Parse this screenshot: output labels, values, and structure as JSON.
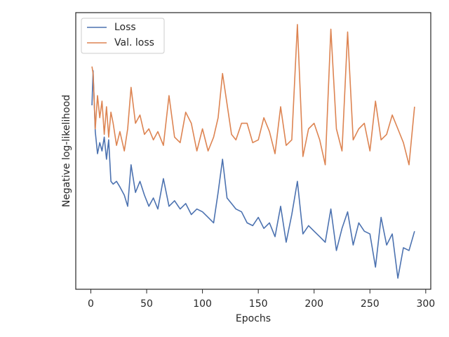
{
  "chart_data": {
    "type": "line",
    "xlabel": "Epochs",
    "ylabel": "Negative log-likelihood",
    "x": [
      1,
      2,
      4,
      6,
      8,
      10,
      12,
      14,
      16,
      18,
      20,
      23,
      26,
      30,
      33,
      36,
      40,
      44,
      48,
      52,
      56,
      60,
      65,
      70,
      75,
      80,
      85,
      90,
      95,
      100,
      105,
      110,
      114,
      118,
      122,
      126,
      130,
      135,
      140,
      145,
      150,
      155,
      160,
      165,
      170,
      175,
      180,
      185,
      190,
      195,
      200,
      205,
      210,
      215,
      220,
      225,
      230,
      235,
      240,
      245,
      250,
      255,
      260,
      265,
      270,
      275,
      280,
      285,
      290
    ],
    "series": [
      {
        "name": "Loss",
        "color": "#4c72b0",
        "values": [
          66.5,
          79,
          57,
          49,
          53,
          50,
          55,
          47,
          54,
          39,
          38,
          39,
          37,
          34,
          30,
          45,
          35,
          39,
          34,
          30,
          33,
          29,
          40,
          30,
          32,
          29,
          31,
          27,
          29,
          28,
          26,
          24,
          35,
          47,
          33,
          31,
          29,
          28,
          24,
          23,
          26,
          22,
          24,
          19,
          30,
          17,
          27,
          39,
          20,
          23,
          21,
          19,
          17,
          29,
          14,
          22,
          28,
          16,
          24,
          21,
          20,
          8,
          26,
          16,
          20,
          4,
          15,
          14,
          21
        ]
      },
      {
        "name": "Val. loss",
        "color": "#dd8452",
        "values": [
          80.5,
          78,
          58,
          70,
          62,
          68,
          56,
          66,
          55,
          64,
          60,
          52,
          57,
          50,
          58,
          73,
          60,
          63,
          56,
          58,
          54,
          57,
          52,
          70,
          55,
          53,
          64,
          60,
          50,
          58,
          50,
          55,
          62,
          78,
          67,
          56,
          54,
          60,
          60,
          53,
          54,
          62,
          57,
          49,
          66,
          52,
          54,
          95.7,
          48,
          58,
          60,
          54,
          45,
          94,
          58,
          50,
          93,
          54,
          58,
          60,
          50,
          68,
          54,
          56,
          63,
          58,
          53,
          45,
          66
        ]
      }
    ],
    "xlim": [
      -13.5,
      304.5
    ],
    "xticks": [
      0,
      50,
      100,
      150,
      200,
      250,
      300
    ],
    "ylim": [
      0,
      100
    ],
    "legend": "upper left"
  }
}
